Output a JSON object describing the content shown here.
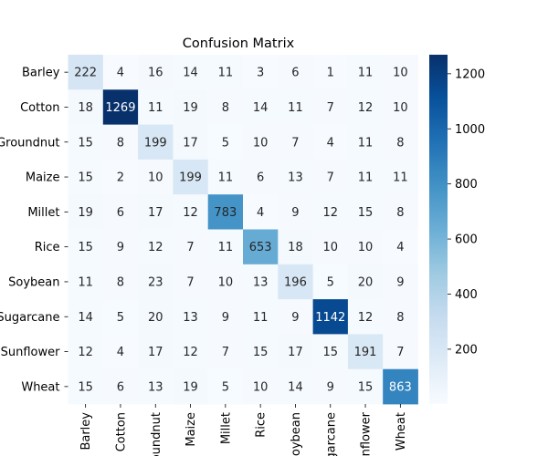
{
  "chart_data": {
    "type": "heatmap",
    "title": "Confusion Matrix",
    "rows": [
      "Barley",
      "Cotton",
      "Groundnut",
      "Maize",
      "Millet",
      "Rice",
      "Soybean",
      "Sugarcane",
      "Sunflower",
      "Wheat"
    ],
    "columns": [
      "Barley",
      "Cotton",
      "Groundnut",
      "Maize",
      "Millet",
      "Rice",
      "Soybean",
      "Sugarcane",
      "Sunflower",
      "Wheat"
    ],
    "values": [
      [
        222,
        4,
        16,
        14,
        11,
        3,
        6,
        1,
        11,
        10
      ],
      [
        18,
        1269,
        11,
        19,
        8,
        14,
        11,
        7,
        12,
        10
      ],
      [
        15,
        8,
        199,
        17,
        5,
        10,
        7,
        4,
        11,
        8
      ],
      [
        15,
        2,
        10,
        199,
        11,
        6,
        13,
        7,
        11,
        11
      ],
      [
        19,
        6,
        17,
        12,
        783,
        4,
        9,
        12,
        15,
        8
      ],
      [
        15,
        9,
        12,
        7,
        11,
        653,
        18,
        10,
        10,
        4
      ],
      [
        11,
        8,
        23,
        7,
        10,
        13,
        196,
        5,
        20,
        9
      ],
      [
        14,
        5,
        20,
        13,
        9,
        11,
        9,
        1142,
        12,
        8
      ],
      [
        12,
        4,
        17,
        12,
        7,
        15,
        17,
        15,
        191,
        7
      ],
      [
        15,
        6,
        13,
        19,
        5,
        10,
        14,
        9,
        15,
        863
      ]
    ],
    "colorbar": {
      "min": 1,
      "max": 1269,
      "ticks": [
        200,
        400,
        600,
        800,
        1000,
        1200
      ],
      "colormap": "Blues"
    }
  }
}
